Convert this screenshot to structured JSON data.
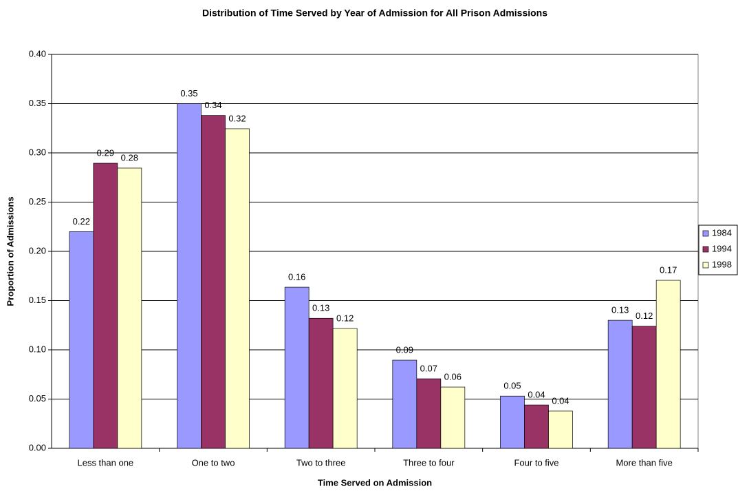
{
  "chart_data": {
    "type": "bar",
    "title": "Distribution of Time Served by Year of Admission for All Prison Admissions",
    "x_label": "Time Served on Admission",
    "y_label": "Proportion of Admissions",
    "categories": [
      "Less than one",
      "One to two",
      "Two to three",
      "Three to four",
      "Four to five",
      "More than five"
    ],
    "series": [
      {
        "name": "1984",
        "color": "#9999ff",
        "values": [
          0.22,
          0.35,
          0.1636,
          0.0895,
          0.053,
          0.13
        ],
        "value_labels": [
          "0.22",
          "0.35",
          "0.16",
          "0.09",
          "0.05",
          "0.13"
        ]
      },
      {
        "name": "1994",
        "color": "#993366",
        "values": [
          0.2895,
          0.338,
          0.132,
          0.0706,
          0.044,
          0.124
        ],
        "value_labels": [
          "0.29",
          "0.34",
          "0.13",
          "0.07",
          "0.04",
          "0.12"
        ]
      },
      {
        "name": "1998",
        "color": "#ffffcc",
        "values": [
          0.2846,
          0.3245,
          0.1217,
          0.0622,
          0.0378,
          0.1706
        ],
        "value_labels": [
          "0.28",
          "0.32",
          "0.12",
          "0.06",
          "0.04",
          "0.17"
        ]
      }
    ],
    "ylim": [
      0,
      0.4
    ],
    "yticks": [
      {
        "value": 0,
        "label": "0.00"
      },
      {
        "value": 0.05,
        "label": "0.05"
      },
      {
        "value": 0.1,
        "label": "0.10"
      },
      {
        "value": 0.15,
        "label": "0.15"
      },
      {
        "value": 0.2,
        "label": "0.20"
      },
      {
        "value": 0.25,
        "label": "0.25"
      },
      {
        "value": 0.3,
        "label": "0.30"
      },
      {
        "value": 0.35,
        "label": "0.35"
      },
      {
        "value": 0.4,
        "label": "0.40"
      }
    ],
    "grid": true,
    "legend": "right"
  }
}
